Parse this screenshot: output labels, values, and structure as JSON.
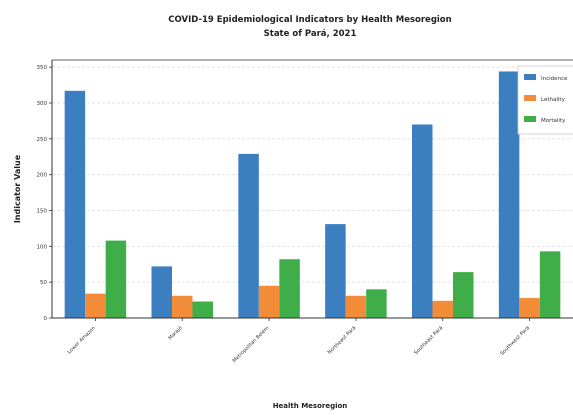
{
  "chart_data": {
    "type": "bar",
    "title": "COVID-19 Epidemiological Indicators by Health Mesoregion",
    "subtitle": "State of Pará, 2021",
    "xlabel": "Health Mesoregion",
    "ylabel": "Indicator Value",
    "ylim": [
      0,
      360
    ],
    "yticks": [
      0,
      50,
      100,
      150,
      200,
      250,
      300,
      350
    ],
    "grid": true,
    "legend_position": "top-right",
    "categories": [
      "Lower Amazon",
      "Marajó",
      "Metropolitan Belém",
      "Northeast Pará",
      "Southeast Pará",
      "Southwest Pará"
    ],
    "series": [
      {
        "name": "Incidence",
        "color": "#3b7fc0",
        "values": [
          317,
          72,
          229,
          131,
          270,
          344
        ]
      },
      {
        "name": "Lethality",
        "color": "#f28c38",
        "values": [
          34,
          31,
          45,
          31,
          24,
          28
        ]
      },
      {
        "name": "Mortality",
        "color": "#3fae49",
        "values": [
          108,
          23,
          82,
          40,
          64,
          93
        ]
      }
    ]
  }
}
